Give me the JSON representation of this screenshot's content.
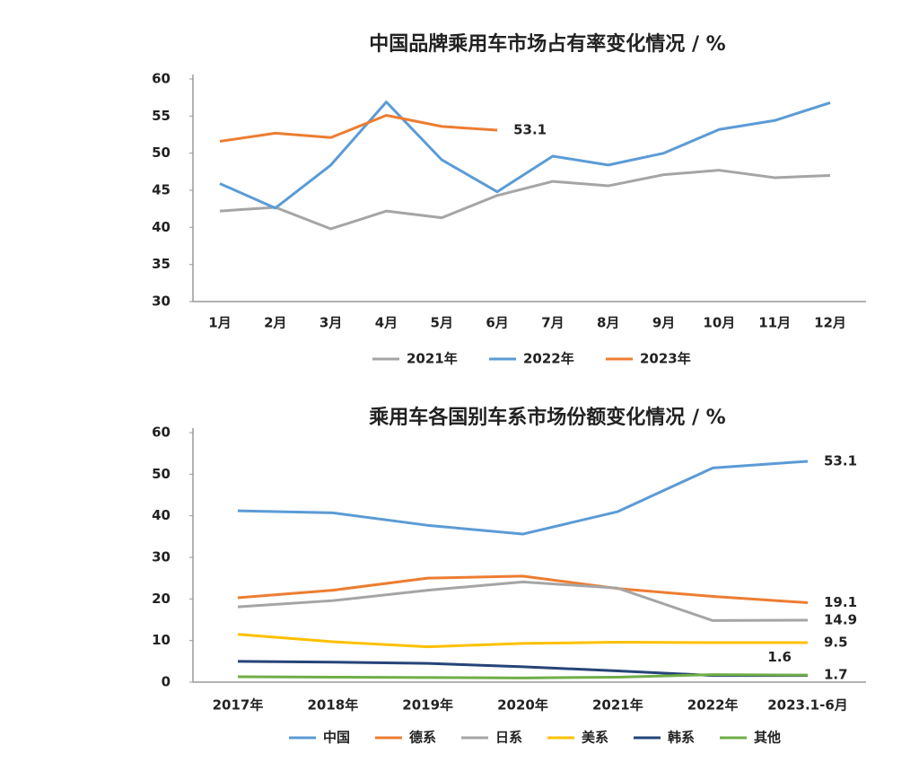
{
  "chart_data": [
    {
      "type": "line",
      "title": "中国品牌乘用车市场占有率变化情况 / %",
      "categories": [
        "1月",
        "2月",
        "3月",
        "4月",
        "5月",
        "6月",
        "7月",
        "8月",
        "9月",
        "10月",
        "11月",
        "12月"
      ],
      "ylim": [
        30,
        60
      ],
      "yticks": [
        30,
        35,
        40,
        45,
        50,
        55,
        60
      ],
      "grid": false,
      "legend": "bottom",
      "series": [
        {
          "name": "2021年",
          "color": "#a5a5a5",
          "values": [
            42.2,
            42.7,
            39.8,
            42.2,
            41.3,
            44.3,
            46.2,
            45.6,
            47.1,
            47.7,
            46.7,
            47.0
          ]
        },
        {
          "name": "2022年",
          "color": "#5b9bd5",
          "values": [
            45.9,
            42.6,
            48.4,
            56.9,
            49.1,
            44.8,
            49.6,
            48.4,
            50.0,
            53.2,
            54.4,
            56.8
          ]
        },
        {
          "name": "2023年",
          "color": "#ed7d31",
          "values": [
            51.6,
            52.7,
            52.1,
            55.1,
            53.6,
            53.1,
            null,
            null,
            null,
            null,
            null,
            null
          ],
          "end_label": true
        }
      ]
    },
    {
      "type": "line",
      "title": "乘用车各国别车系市场份额变化情况 / %",
      "categories": [
        "2017年",
        "2018年",
        "2019年",
        "2020年",
        "2021年",
        "2022年",
        "2023.1-6月"
      ],
      "ylim": [
        0,
        60
      ],
      "yticks": [
        0,
        10,
        20,
        30,
        40,
        50,
        60
      ],
      "grid": false,
      "legend": "bottom",
      "series": [
        {
          "name": "中国",
          "color": "#5b9bd5",
          "values": [
            41.2,
            40.7,
            37.7,
            35.6,
            41.0,
            51.5,
            53.1
          ],
          "end_label": true
        },
        {
          "name": "德系",
          "color": "#ed7d31",
          "values": [
            20.3,
            22.1,
            25.0,
            25.5,
            22.5,
            20.6,
            19.1
          ],
          "end_label": true
        },
        {
          "name": "日系",
          "color": "#a5a5a5",
          "values": [
            18.1,
            19.6,
            22.1,
            24.1,
            22.6,
            14.8,
            14.9
          ],
          "end_label": true
        },
        {
          "name": "美系",
          "color": "#ffc000",
          "values": [
            11.5,
            9.7,
            8.5,
            9.3,
            9.6,
            9.5,
            9.5
          ],
          "end_label": true
        },
        {
          "name": "韩系",
          "color": "#264478",
          "values": [
            5.0,
            4.8,
            4.5,
            3.7,
            2.7,
            1.6,
            1.6
          ],
          "end_label": true
        },
        {
          "name": "其他",
          "color": "#70ad47",
          "values": [
            1.3,
            1.2,
            1.1,
            1.0,
            1.2,
            1.8,
            1.7
          ],
          "end_label": true
        }
      ]
    }
  ]
}
